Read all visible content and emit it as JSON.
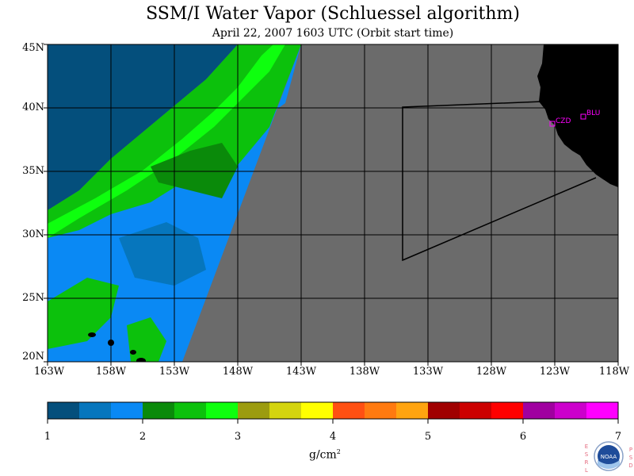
{
  "title": "SSM/I Water Vapor (Schluessel algorithm)",
  "subtitle": "April 22, 2007  1603 UTC  (Orbit start time)",
  "map": {
    "lat_range": [
      20,
      45
    ],
    "lon_range": [
      -163,
      -118
    ],
    "lat_labels": [
      "45N",
      "40N",
      "35N",
      "30N",
      "25N",
      "20N"
    ],
    "lon_labels": [
      "163W",
      "158W",
      "153W",
      "148W",
      "143W",
      "138W",
      "133W",
      "128W",
      "123W",
      "118W"
    ],
    "land_color": "#000000",
    "no_data_color": "#6b6b6b",
    "graticule": "on",
    "sites": [
      {
        "id": "CZD",
        "lat": 38.6,
        "lon": -123.2
      },
      {
        "id": "BLU",
        "lat": 39.3,
        "lon": -120.7
      }
    ]
  },
  "colorbar": {
    "ticks": [
      "1",
      "2",
      "3",
      "4",
      "5",
      "6",
      "7"
    ],
    "min": 1,
    "max": 7,
    "unit": "g/cm",
    "unit_sup": "2",
    "colors": [
      "#044f7c",
      "#0676bd",
      "#0a89f4",
      "#0a8a0a",
      "#0cc10c",
      "#0eff0e",
      "#9c9c0f",
      "#d4d40e",
      "#ffff00",
      "#ff5012",
      "#ff7a10",
      "#ffa410",
      "#a00000",
      "#cc0000",
      "#ff0000",
      "#a000a0",
      "#cc00cc",
      "#ff00ff"
    ]
  },
  "logo": {
    "left_vertical": "ESRL",
    "right_vertical": "PSD",
    "text": "NOAA"
  }
}
